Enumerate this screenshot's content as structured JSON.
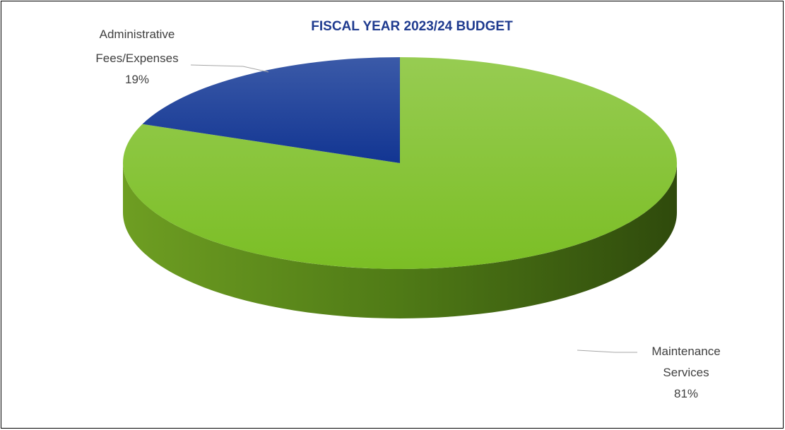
{
  "chart_data": {
    "type": "pie",
    "title": "FISCAL YEAR 2023/24 BUDGET",
    "slices": [
      {
        "name": "Administrative Fees/Expenses",
        "label_lines": [
          "Administrative",
          "Fees/Expenses",
          "19%"
        ],
        "value": 19,
        "color": "#1A3A9A"
      },
      {
        "name": "Maintenance Services",
        "label_lines": [
          "Maintenance",
          "Services",
          "81%"
        ],
        "value": 81,
        "color": "#7FBF2A"
      }
    ],
    "style": "3d",
    "legend": "none"
  }
}
